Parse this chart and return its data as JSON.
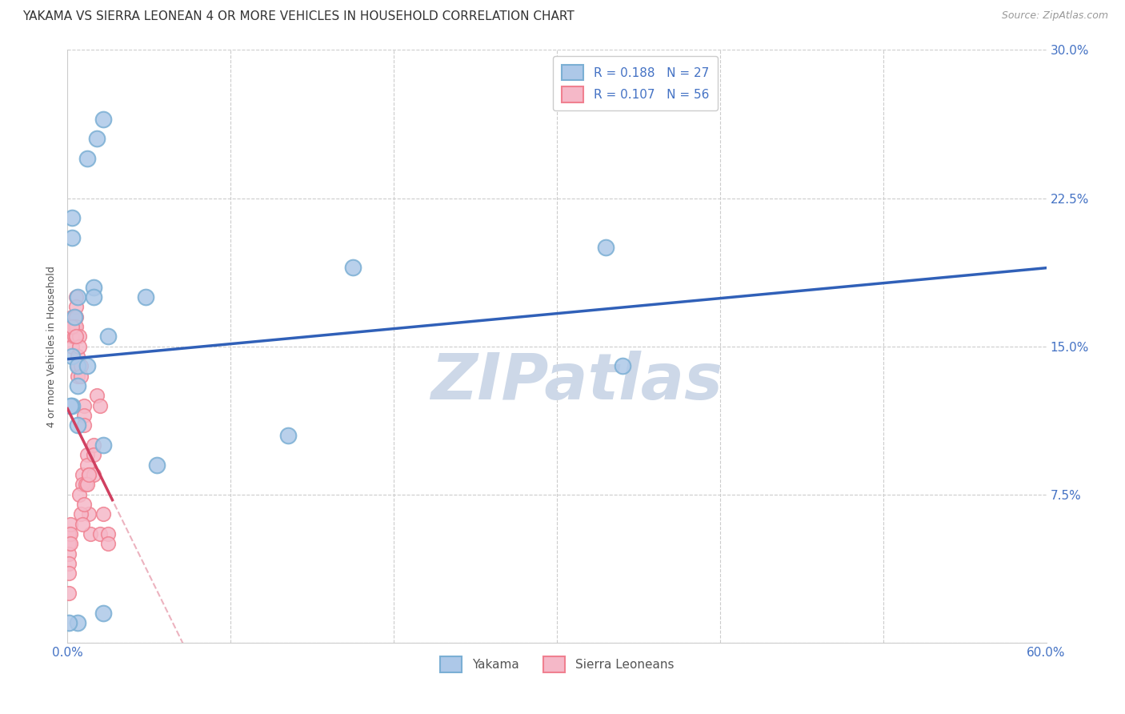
{
  "title": "YAKAMA VS SIERRA LEONEAN 4 OR MORE VEHICLES IN HOUSEHOLD CORRELATION CHART",
  "source": "Source: ZipAtlas.com",
  "ylabel": "4 or more Vehicles in Household",
  "xlim": [
    0.0,
    0.6
  ],
  "ylim": [
    0.0,
    0.3
  ],
  "xticks": [
    0.0,
    0.1,
    0.2,
    0.3,
    0.4,
    0.5,
    0.6
  ],
  "xticklabels": [
    "0.0%",
    "",
    "",
    "",
    "",
    "",
    "60.0%"
  ],
  "yticks": [
    0.0,
    0.075,
    0.15,
    0.225,
    0.3
  ],
  "yticklabels": [
    "",
    "7.5%",
    "15.0%",
    "22.5%",
    "30.0%"
  ],
  "watermark": "ZIPatlas",
  "watermark_color": "#cdd8e8",
  "yakama_color": "#7bafd4",
  "sierra_color": "#f08090",
  "yakama_face": "#adc8e8",
  "sierra_face": "#f5b8c8",
  "line_blue": "#3060b8",
  "line_pink": "#d04060",
  "dashed_pink": "#e8a0b0",
  "grid_color": "#cccccc",
  "bg_color": "#ffffff",
  "title_fontsize": 11,
  "label_fontsize": 9,
  "tick_fontsize": 11,
  "source_fontsize": 9,
  "legend_fontsize": 11,
  "yakama_x": [
    0.003,
    0.012,
    0.018,
    0.022,
    0.003,
    0.004,
    0.006,
    0.016,
    0.025,
    0.048,
    0.016,
    0.175,
    0.003,
    0.006,
    0.055,
    0.135,
    0.003,
    0.006,
    0.022,
    0.33,
    0.34,
    0.006,
    0.022,
    0.001,
    0.012,
    0.002,
    0.006
  ],
  "yakama_y": [
    0.205,
    0.245,
    0.255,
    0.265,
    0.215,
    0.165,
    0.175,
    0.18,
    0.155,
    0.175,
    0.175,
    0.19,
    0.145,
    0.14,
    0.09,
    0.105,
    0.12,
    0.13,
    0.1,
    0.2,
    0.14,
    0.01,
    0.015,
    0.01,
    0.14,
    0.12,
    0.11
  ],
  "sierra_x": [
    0.001,
    0.001,
    0.001,
    0.001,
    0.001,
    0.001,
    0.002,
    0.002,
    0.002,
    0.003,
    0.003,
    0.003,
    0.003,
    0.004,
    0.004,
    0.004,
    0.005,
    0.005,
    0.005,
    0.005,
    0.005,
    0.006,
    0.006,
    0.006,
    0.007,
    0.007,
    0.008,
    0.008,
    0.009,
    0.009,
    0.01,
    0.01,
    0.01,
    0.012,
    0.012,
    0.013,
    0.013,
    0.014,
    0.016,
    0.016,
    0.016,
    0.018,
    0.02,
    0.02,
    0.022,
    0.025,
    0.025,
    0.003,
    0.005,
    0.007,
    0.008,
    0.009,
    0.01,
    0.011,
    0.012,
    0.013
  ],
  "sierra_y": [
    0.055,
    0.05,
    0.045,
    0.04,
    0.035,
    0.025,
    0.06,
    0.055,
    0.05,
    0.165,
    0.16,
    0.155,
    0.15,
    0.165,
    0.16,
    0.155,
    0.175,
    0.17,
    0.165,
    0.16,
    0.155,
    0.145,
    0.14,
    0.135,
    0.155,
    0.15,
    0.14,
    0.135,
    0.085,
    0.08,
    0.12,
    0.115,
    0.11,
    0.095,
    0.09,
    0.085,
    0.065,
    0.055,
    0.1,
    0.095,
    0.085,
    0.125,
    0.12,
    0.055,
    0.065,
    0.055,
    0.05,
    0.16,
    0.155,
    0.075,
    0.065,
    0.06,
    0.07,
    0.08,
    0.08,
    0.085
  ]
}
